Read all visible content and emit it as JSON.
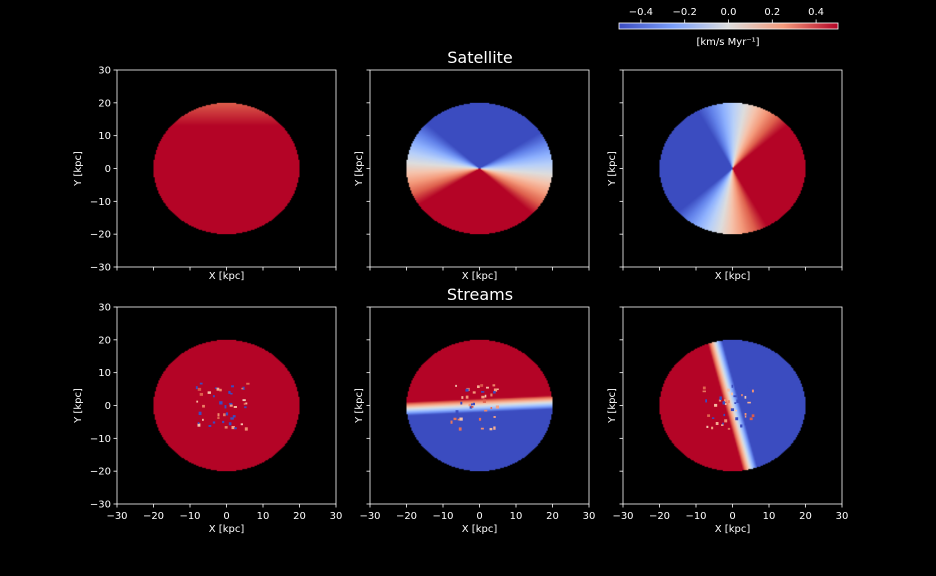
{
  "chart_data": {
    "type": "heatmap",
    "colormap": "coolwarm",
    "colorbar": {
      "label": "[km/s  Myr$^{-1}$]",
      "label_display": "[km/s  Myr⁻¹]",
      "range": [
        -0.5,
        0.5
      ],
      "ticks": [
        -0.4,
        -0.2,
        0.0,
        0.2,
        0.4
      ],
      "tick_labels": [
        "−0.4",
        "−0.2",
        "0.0",
        "0.2",
        "0.4"
      ],
      "placement": "top-right"
    },
    "rows": [
      {
        "title": "Satellite"
      },
      {
        "title": "Streams"
      }
    ],
    "xlabel": "X [kpc]",
    "ylabel": "Y [kpc]",
    "xlim": [
      -30,
      30
    ],
    "ylim": [
      -30,
      30
    ],
    "x_ticks": [
      -30,
      -20,
      -10,
      0,
      10,
      20,
      30
    ],
    "y_ticks": [
      -30,
      -20,
      -10,
      0,
      10,
      20,
      30
    ],
    "x_tick_labels": [
      "−30",
      "−20",
      "−10",
      "0",
      "10",
      "20",
      "30"
    ],
    "y_tick_labels": [
      "−30",
      "−20",
      "−10",
      "0",
      "10",
      "20",
      "30"
    ],
    "disk_radius": 20,
    "panels": [
      {
        "row": 0,
        "col": 0,
        "pattern": "positive_top_gradient",
        "max": 0.5,
        "min": 0.3
      },
      {
        "row": 0,
        "col": 1,
        "pattern": "dipole_bottom_positive",
        "axis_angle_deg": -95,
        "amplitude": 0.5
      },
      {
        "row": 0,
        "col": 2,
        "pattern": "dipole_right_positive",
        "axis_angle_deg": -10,
        "amplitude": 0.5
      },
      {
        "row": 1,
        "col": 0,
        "pattern": "uniform_positive",
        "value": 0.5,
        "noise_near_center": true
      },
      {
        "row": 1,
        "col": 1,
        "pattern": "split_top_positive",
        "transition_width_kpc": 2.5,
        "amplitude": 0.5,
        "noise_near_center": true
      },
      {
        "row": 1,
        "col": 2,
        "pattern": "split_left_positive",
        "transition_width_kpc": 2.5,
        "amplitude": 0.5,
        "noise_near_center": true
      }
    ]
  }
}
